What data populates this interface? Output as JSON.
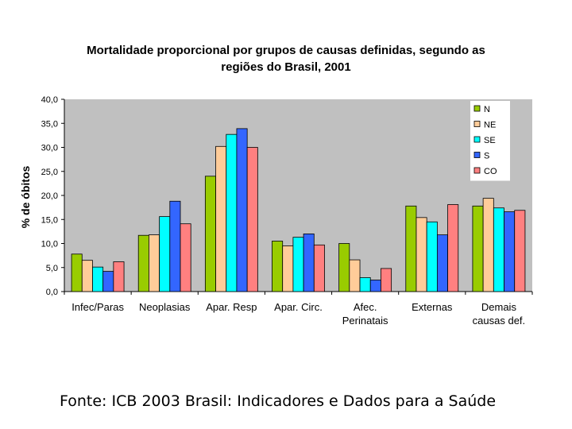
{
  "chart_data": {
    "type": "bar",
    "title_lines": [
      "Mortalidade proporcional por grupos de causas definidas, segundo as",
      "regiões do Brasil, 2001"
    ],
    "ylabel": "% de óbitos",
    "xlabel": "",
    "ylim": [
      0,
      40
    ],
    "yticks": [
      "0,0",
      "5,0",
      "10,0",
      "15,0",
      "20,0",
      "25,0",
      "30,0",
      "35,0",
      "40,0"
    ],
    "categories": [
      [
        "Infec/Paras"
      ],
      [
        "Neoplasias"
      ],
      [
        "Apar. Resp"
      ],
      [
        "Apar. Circ."
      ],
      [
        "Afec.",
        "Perinatais"
      ],
      [
        "Externas"
      ],
      [
        "Demais",
        "causas def."
      ]
    ],
    "series": [
      {
        "name": "N",
        "color": "#99CC00",
        "values": [
          7.8,
          11.7,
          24.0,
          10.5,
          10.0,
          17.8,
          17.8
        ]
      },
      {
        "name": "NE",
        "color": "#FFCC99",
        "values": [
          6.5,
          11.8,
          30.2,
          9.5,
          6.6,
          15.4,
          19.4
        ]
      },
      {
        "name": "SE",
        "color": "#00FFFF",
        "values": [
          5.1,
          15.6,
          32.7,
          11.3,
          2.9,
          14.5,
          17.4
        ]
      },
      {
        "name": "S",
        "color": "#3366FF",
        "values": [
          4.2,
          18.8,
          33.9,
          12.0,
          2.4,
          11.8,
          16.6
        ]
      },
      {
        "name": "CO",
        "color": "#FF8080",
        "values": [
          6.2,
          14.1,
          30.0,
          9.7,
          4.8,
          18.1,
          16.9
        ]
      }
    ],
    "grid": false,
    "legend_position": "top-right",
    "plot_background": "#C0C0C0"
  },
  "source_text": "Fonte: ICB 2003 Brasil: Indicadores e Dados para a Saúde"
}
